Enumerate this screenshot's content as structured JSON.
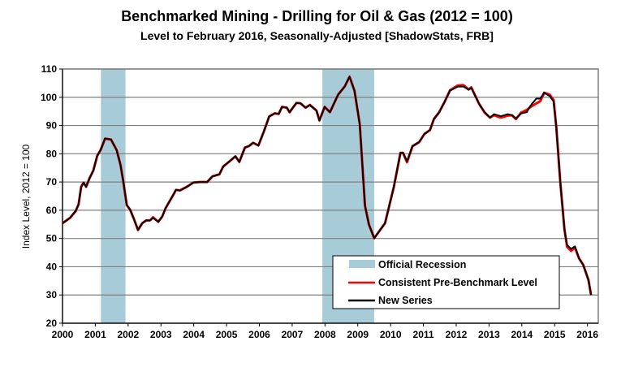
{
  "chart_data": {
    "type": "line",
    "title": "Benchmarked Mining - Drilling for Oil & Gas (2012 = 100)",
    "subtitle": "Level to February 2016, Seasonally-Adjusted [ShadowStats, FRB]",
    "xlabel": "",
    "ylabel": "Index Level, 2012 = 100",
    "xlim": [
      2000,
      2016.33
    ],
    "ylim": [
      20,
      110
    ],
    "xticks": [
      "2000",
      "2001",
      "2002",
      "2003",
      "2004",
      "2005",
      "2006",
      "2007",
      "2008",
      "2009",
      "2010",
      "2011",
      "2012",
      "2013",
      "2014",
      "2015",
      "2016"
    ],
    "yticks": [
      "20",
      "30",
      "40",
      "50",
      "60",
      "70",
      "80",
      "90",
      "100",
      "110"
    ],
    "grid": true,
    "legend_position": "bottom-right",
    "recessions": [
      {
        "name": "Official Recession",
        "start": 2001.17,
        "end": 2001.92
      },
      {
        "name": "Official Recession",
        "start": 2007.92,
        "end": 2009.5
      }
    ],
    "x": [
      2000.0,
      2000.23,
      2000.4,
      2000.49,
      2000.57,
      2000.64,
      2000.72,
      2000.82,
      2000.94,
      2001.06,
      2001.16,
      2001.3,
      2001.48,
      2001.65,
      2001.77,
      2001.85,
      2001.96,
      2002.06,
      2002.18,
      2002.3,
      2002.43,
      2002.55,
      2002.67,
      2002.76,
      2002.92,
      2003.04,
      2003.14,
      2003.33,
      2003.46,
      2003.58,
      2003.79,
      2003.99,
      2004.2,
      2004.41,
      2004.57,
      2004.78,
      2004.9,
      2005.1,
      2005.27,
      2005.39,
      2005.56,
      2005.68,
      2005.81,
      2005.97,
      2006.14,
      2006.3,
      2006.47,
      2006.59,
      2006.69,
      2006.84,
      2006.92,
      2007.13,
      2007.25,
      2007.41,
      2007.54,
      2007.74,
      2007.83,
      2007.99,
      2008.15,
      2008.4,
      2008.6,
      2008.75,
      2008.9,
      2009.06,
      2009.22,
      2009.34,
      2009.5,
      2009.83,
      2010.1,
      2010.3,
      2010.38,
      2010.5,
      2010.67,
      2010.87,
      2011.03,
      2011.2,
      2011.32,
      2011.48,
      2011.65,
      2011.81,
      2012.05,
      2012.22,
      2012.38,
      2012.46,
      2012.7,
      2012.87,
      2013.03,
      2013.15,
      2013.36,
      2013.57,
      2013.7,
      2013.82,
      2013.98,
      2014.15,
      2014.27,
      2014.44,
      2014.56,
      2014.68,
      2014.85,
      2014.97,
      2015.05,
      2015.17,
      2015.3,
      2015.38,
      2015.5,
      2015.62,
      2015.74,
      2015.87,
      2016.03,
      2016.11
    ],
    "series": [
      {
        "name": "Consistent Pre-Benchmark Level",
        "color": "#ff0000",
        "values": [
          55.4,
          57.3,
          59.7,
          62.1,
          68.3,
          69.8,
          68.3,
          71.2,
          74.1,
          79.3,
          81.3,
          85.4,
          85,
          81.3,
          76,
          70.3,
          61.8,
          60.2,
          56.8,
          53,
          55.4,
          56.4,
          56.4,
          57.5,
          55.9,
          57.8,
          60.7,
          64.5,
          67.2,
          67,
          68.3,
          69.8,
          70,
          70,
          72,
          72.7,
          75.5,
          77.4,
          79.1,
          77.1,
          82.2,
          82.7,
          83.9,
          82.9,
          88,
          93.2,
          94.3,
          94.1,
          96.6,
          96.3,
          94.7,
          98,
          97.9,
          96.3,
          97.3,
          95.3,
          91.8,
          96.6,
          94.7,
          100.9,
          103.8,
          107.3,
          102.3,
          90.4,
          61.6,
          54.9,
          50.1,
          55.4,
          68.3,
          80.3,
          80.3,
          77,
          82.7,
          84.1,
          87,
          88.4,
          92.3,
          94.7,
          98.5,
          102.5,
          104.2,
          104.3,
          102.8,
          103.5,
          97.6,
          94.5,
          92.8,
          93.6,
          92.8,
          93.5,
          93.6,
          92.3,
          94.6,
          95.5,
          96.6,
          97.8,
          98.6,
          101.6,
          100.9,
          99,
          89.4,
          70.3,
          53,
          47,
          45.6,
          46.8,
          43,
          40.7,
          35.3,
          30
        ]
      },
      {
        "name": "New Series",
        "color": "#000000",
        "values": [
          55.4,
          57.3,
          59.7,
          62.1,
          68.3,
          69.8,
          68.3,
          71.2,
          74.1,
          79.3,
          81.3,
          85.4,
          85,
          81.3,
          76,
          70.3,
          61.8,
          60.2,
          56.8,
          53,
          55.4,
          56.4,
          56.4,
          57.3,
          55.9,
          57.8,
          60.7,
          64.5,
          67.2,
          67,
          68.3,
          69.8,
          70,
          70,
          72,
          72.7,
          75.5,
          77.4,
          79.1,
          77.1,
          82.2,
          82.7,
          83.9,
          82.9,
          88,
          93.2,
          94.3,
          94.1,
          96.6,
          96.3,
          94.7,
          98,
          97.9,
          96.3,
          97.3,
          95.3,
          91.8,
          96.6,
          94.7,
          100.9,
          103.8,
          107.3,
          102.3,
          90.4,
          61.6,
          54.9,
          50.1,
          55.4,
          68.3,
          80.3,
          80.3,
          77.4,
          82.7,
          84.1,
          87,
          88.4,
          92.3,
          94.7,
          98.5,
          102.3,
          103.8,
          103.8,
          102.6,
          103.3,
          97.6,
          94.7,
          92.8,
          94,
          93.3,
          94,
          93.7,
          92.5,
          94.3,
          94.7,
          97.1,
          99.5,
          99.5,
          101.6,
          100.4,
          98.5,
          89.4,
          70.3,
          53,
          47.7,
          46.3,
          47.2,
          43,
          40.7,
          35.3,
          30
        ]
      }
    ],
    "legend": [
      {
        "label": "Official Recession",
        "color": "#a7ccd8"
      },
      {
        "label": "Consistent Pre-Benchmark Level",
        "color": "#ff0000"
      },
      {
        "label": "New Series",
        "color": "#000000"
      }
    ]
  }
}
